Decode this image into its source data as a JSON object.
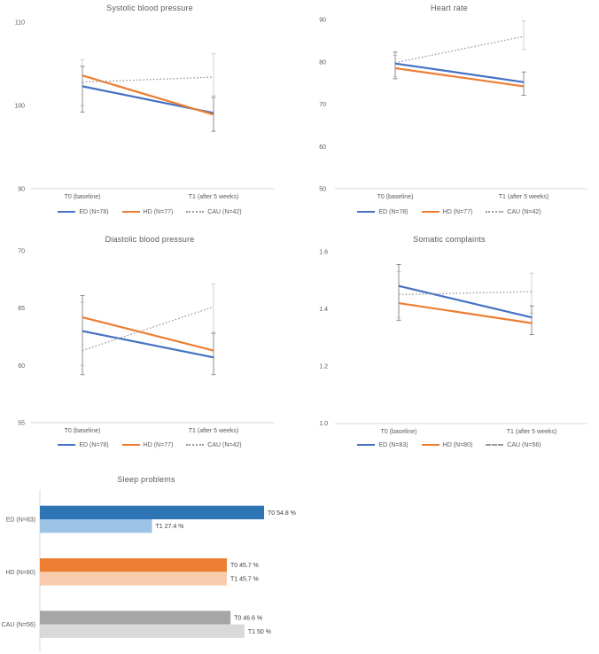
{
  "chart_data": [
    {
      "type": "line",
      "title": "Systolic blood pressure",
      "x_categories": [
        "T0 (baseline)",
        "T1 (after 5 weeks)"
      ],
      "ylim": [
        90,
        110
      ],
      "yticks": [
        "90",
        "100",
        "110"
      ],
      "grid": false,
      "legend_position": "bottom",
      "series": [
        {
          "name": "ED (N=78)",
          "color": "#4472c4",
          "style": "solid",
          "values": [
            102.3,
            99.1
          ]
        },
        {
          "name": "HD (N=77)",
          "color": "#ed7d31",
          "style": "solid",
          "values": [
            103.6,
            98.9
          ]
        },
        {
          "name": "CAU (N=42)",
          "color": "#999999",
          "style": "dotted",
          "values": [
            102.8,
            103.4
          ]
        }
      ],
      "error_bars": [
        {
          "x": 0,
          "low": 100.0,
          "high": 105.5,
          "color": "#d0d0d0"
        },
        {
          "x": 0,
          "low": 99.2,
          "high": 104.7,
          "color": "#8c8c8c"
        },
        {
          "x": 1,
          "low": 101.2,
          "high": 106.2,
          "color": "#d0d0d0"
        },
        {
          "x": 1,
          "low": 96.9,
          "high": 101.0,
          "color": "#8c8c8c"
        }
      ]
    },
    {
      "type": "line",
      "title": "Heart rate",
      "x_categories": [
        "T0 (baseline)",
        "T1 (after 5 weeks)"
      ],
      "ylim": [
        50,
        90
      ],
      "yticks": [
        "50",
        "60",
        "70",
        "80",
        "90"
      ],
      "grid": false,
      "legend_position": "bottom",
      "series": [
        {
          "name": "ED (N=78)",
          "color": "#4472c4",
          "style": "solid",
          "values": [
            79.6,
            75.2
          ]
        },
        {
          "name": "HD (N=77)",
          "color": "#ed7d31",
          "style": "solid",
          "values": [
            78.5,
            74.2
          ]
        },
        {
          "name": "CAU (N=42)",
          "color": "#999999",
          "style": "dotted",
          "values": [
            79.8,
            86.0
          ]
        }
      ],
      "error_bars": [
        {
          "x": 0,
          "low": 76.5,
          "high": 81.5,
          "color": "#d0d0d0"
        },
        {
          "x": 0,
          "low": 76.0,
          "high": 82.3,
          "color": "#8c8c8c"
        },
        {
          "x": 1,
          "low": 82.9,
          "high": 89.7,
          "color": "#d0d0d0"
        },
        {
          "x": 1,
          "low": 72.1,
          "high": 77.6,
          "color": "#8c8c8c"
        }
      ]
    },
    {
      "type": "line",
      "title": "Diastolic blood pressure",
      "x_categories": [
        "T0 (baseline)",
        "T1 (after 5 weeks)"
      ],
      "ylim": [
        55,
        70
      ],
      "yticks": [
        "55",
        "60",
        "65",
        "70"
      ],
      "grid": false,
      "legend_position": "bottom",
      "series": [
        {
          "name": "ED (N=78)",
          "color": "#4472c4",
          "style": "solid",
          "values": [
            63.0,
            60.7
          ]
        },
        {
          "name": "HD (N=77)",
          "color": "#ed7d31",
          "style": "solid",
          "values": [
            64.2,
            61.3
          ]
        },
        {
          "name": "CAU (N=42)",
          "color": "#999999",
          "style": "dotted",
          "values": [
            61.3,
            65.1
          ]
        }
      ],
      "error_bars": [
        {
          "x": 0,
          "low": 60.0,
          "high": 65.5,
          "color": "#d0d0d0"
        },
        {
          "x": 0,
          "low": 59.2,
          "high": 66.1,
          "color": "#8c8c8c"
        },
        {
          "x": 1,
          "low": 62.9,
          "high": 67.1,
          "color": "#d0d0d0"
        },
        {
          "x": 1,
          "low": 59.2,
          "high": 62.8,
          "color": "#8c8c8c"
        }
      ]
    },
    {
      "type": "line",
      "title": "Somatic complaints",
      "x_categories": [
        "T0 (baseline)",
        "T1 (after 5 weeks)"
      ],
      "ylim": [
        1.0,
        1.6
      ],
      "yticks": [
        "1.0",
        "1.2",
        "1.4",
        "1.6"
      ],
      "grid": false,
      "legend_position": "bottom",
      "series": [
        {
          "name": "ED (N=83)",
          "color": "#4472c4",
          "style": "solid",
          "values": [
            1.48,
            1.37
          ]
        },
        {
          "name": "HD (N=80)",
          "color": "#ed7d31",
          "style": "solid",
          "values": [
            1.42,
            1.35
          ]
        },
        {
          "name": "CAU (N=56)",
          "color": "#999999",
          "style": "dotted",
          "legend_style": "dashed",
          "values": [
            1.45,
            1.46
          ]
        }
      ],
      "error_bars": [
        {
          "x": 0,
          "low": 1.37,
          "high": 1.53,
          "color": "#d0d0d0"
        },
        {
          "x": 0,
          "low": 1.36,
          "high": 1.555,
          "color": "#8c8c8c"
        },
        {
          "x": 1,
          "low": 1.385,
          "high": 1.525,
          "color": "#d0d0d0"
        },
        {
          "x": 1,
          "low": 1.31,
          "high": 1.41,
          "color": "#8c8c8c"
        }
      ]
    },
    {
      "type": "bar",
      "title": "Sleep problems",
      "orientation": "horizontal",
      "xlim": [
        0,
        60
      ],
      "grid": false,
      "groups": [
        {
          "label": "ED (N=83)",
          "bars": [
            {
              "label": "T0 54.8 %",
              "value": 54.8,
              "color": "#2e75b6"
            },
            {
              "label": "T1 27.4 %",
              "value": 27.4,
              "color": "#9dc3e6"
            }
          ]
        },
        {
          "label": "HD (N=80)",
          "bars": [
            {
              "label": "T0 45.7 %",
              "value": 45.7,
              "color": "#ed7d31"
            },
            {
              "label": "T1 45.7 %",
              "value": 45.7,
              "color": "#f8cbad"
            }
          ]
        },
        {
          "label": "CAU (N=56)",
          "bars": [
            {
              "label": "T0 46.6 %",
              "value": 46.6,
              "color": "#a6a6a6"
            },
            {
              "label": "T1 50 %",
              "value": 50.0,
              "color": "#d9d9d9"
            }
          ]
        }
      ]
    }
  ]
}
